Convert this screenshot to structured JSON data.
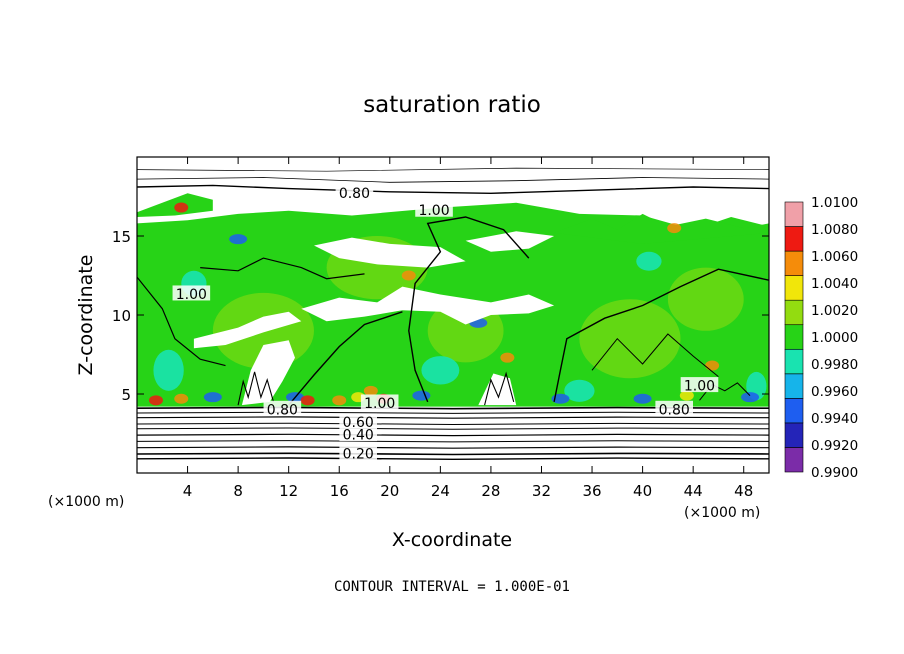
{
  "chart_data": {
    "type": "heatmap",
    "title": "saturation ratio",
    "xlabel": "X-coordinate",
    "ylabel": "Z-coordinate",
    "x_unit_left": "(×1000 m)",
    "x_unit_right": "(×1000 m)",
    "xlim": [
      0,
      50
    ],
    "ylim": [
      0,
      20
    ],
    "x_ticks": [
      4,
      8,
      12,
      16,
      20,
      24,
      28,
      32,
      36,
      40,
      44,
      48
    ],
    "y_ticks": [
      5,
      10,
      15
    ],
    "colorbar": {
      "levels": [
        0.99,
        0.992,
        0.994,
        0.996,
        0.998,
        1.0,
        1.002,
        1.004,
        1.006,
        1.008,
        1.01
      ],
      "labels": [
        "0.9900",
        "0.9920",
        "0.9940",
        "0.9960",
        "0.9980",
        "1.0000",
        "1.0020",
        "1.0040",
        "1.0060",
        "1.0080",
        "1.0100"
      ],
      "colors": [
        "#7b2ca8",
        "#2424b8",
        "#1e5ef0",
        "#16b4ea",
        "#19e3b0",
        "#27d317",
        "#93dc10",
        "#f1e60a",
        "#f58c0a",
        "#ee1a12",
        "#f0a0a8"
      ]
    },
    "contour_labels": [
      {
        "text": "0.20",
        "x": 17.5,
        "z": 1.2
      },
      {
        "text": "0.40",
        "x": 17.5,
        "z": 2.4
      },
      {
        "text": "0.60",
        "x": 17.5,
        "z": 3.2
      },
      {
        "text": "0.80",
        "x": 11.5,
        "z": 4.0
      },
      {
        "text": "1.00",
        "x": 19.2,
        "z": 4.4
      },
      {
        "text": "0.80",
        "x": 42.5,
        "z": 4.0
      },
      {
        "text": "1.00",
        "x": 44.5,
        "z": 5.5
      },
      {
        "text": "1.00",
        "x": 4.3,
        "z": 11.3
      },
      {
        "text": "1.00",
        "x": 23.5,
        "z": 16.6
      },
      {
        "text": "0.80",
        "x": 17.2,
        "z": 17.7
      }
    ],
    "footnote": "CONTOUR INTERVAL = 1.000E-01",
    "grid": false,
    "legend": "right"
  }
}
